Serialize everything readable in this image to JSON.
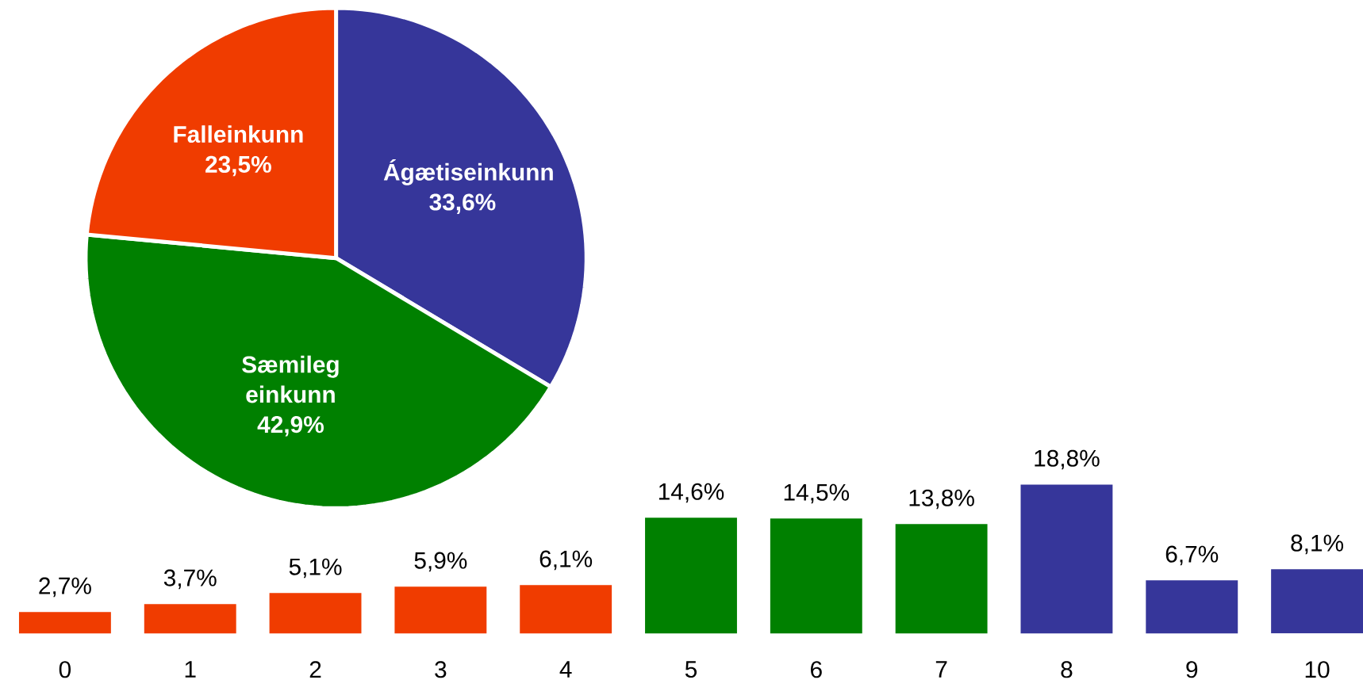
{
  "chart_data": [
    {
      "type": "pie",
      "categories": [
        "Ágætiseinkunn",
        "Sæmileg einkunn",
        "Falleinkunn"
      ],
      "values": [
        33.6,
        42.9,
        23.5
      ],
      "colors": [
        "#36369a",
        "#008000",
        "#f03c00"
      ],
      "value_labels": [
        "33,6%",
        "42,9%",
        "23,5%"
      ]
    },
    {
      "type": "bar",
      "categories": [
        "0",
        "1",
        "2",
        "3",
        "4",
        "5",
        "6",
        "7",
        "8",
        "9",
        "10"
      ],
      "values": [
        2.7,
        3.7,
        5.1,
        5.9,
        6.1,
        14.6,
        14.5,
        13.8,
        18.8,
        6.7,
        8.1
      ],
      "colors": [
        "#f03c00",
        "#f03c00",
        "#f03c00",
        "#f03c00",
        "#f03c00",
        "#008000",
        "#008000",
        "#008000",
        "#36369a",
        "#36369a",
        "#36369a"
      ],
      "value_labels": [
        "2,7%",
        "3,7%",
        "5,1%",
        "5,9%",
        "6,1%",
        "14,6%",
        "14,5%",
        "13,8%",
        "18,8%",
        "6,7%",
        "8,1%"
      ]
    }
  ]
}
